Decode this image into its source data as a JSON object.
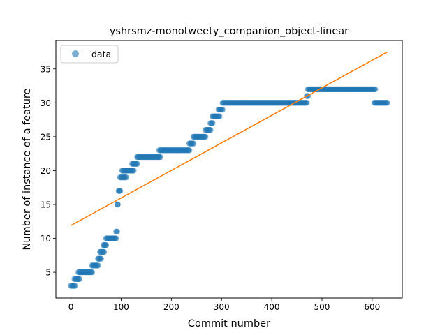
{
  "chart_data": {
    "type": "scatter",
    "title": "yshrsmz-monotweety_companion_object-linear",
    "xlabel": "Commit number",
    "ylabel": "Number of instance of a feature",
    "xlim": [
      -30,
      660
    ],
    "ylim": [
      1.2,
      39.2
    ],
    "xticks": [
      0,
      100,
      200,
      300,
      400,
      500,
      600
    ],
    "yticks": [
      5,
      10,
      15,
      20,
      25,
      30,
      35
    ],
    "legend": {
      "position": "top-left",
      "entries": [
        "data"
      ]
    },
    "grid": false,
    "colors": {
      "scatter": "#1f77b4",
      "fit": "#ff7f0e"
    },
    "scatter_segments": [
      {
        "x0": 0,
        "x1": 8,
        "y": 3
      },
      {
        "x0": 7,
        "x1": 17,
        "y": 4
      },
      {
        "x0": 15,
        "x1": 42,
        "y": 5
      },
      {
        "x0": 42,
        "x1": 54,
        "y": 6
      },
      {
        "x0": 54,
        "x1": 60,
        "y": 7
      },
      {
        "x0": 58,
        "x1": 66,
        "y": 8
      },
      {
        "x0": 65,
        "x1": 70,
        "y": 9
      },
      {
        "x0": 70,
        "x1": 90,
        "y": 10
      },
      {
        "x0": 90,
        "x1": 92,
        "y": 11
      },
      {
        "x0": 93,
        "x1": 93,
        "y": 15
      },
      {
        "x0": 95,
        "x1": 98,
        "y": 17
      },
      {
        "x0": 98,
        "x1": 110,
        "y": 19
      },
      {
        "x0": 102,
        "x1": 125,
        "y": 20
      },
      {
        "x0": 122,
        "x1": 132,
        "y": 21
      },
      {
        "x0": 132,
        "x1": 178,
        "y": 22
      },
      {
        "x0": 176,
        "x1": 236,
        "y": 23
      },
      {
        "x0": 236,
        "x1": 244,
        "y": 24
      },
      {
        "x0": 244,
        "x1": 268,
        "y": 25
      },
      {
        "x0": 268,
        "x1": 278,
        "y": 26
      },
      {
        "x0": 278,
        "x1": 282,
        "y": 27
      },
      {
        "x0": 282,
        "x1": 296,
        "y": 28
      },
      {
        "x0": 294,
        "x1": 302,
        "y": 29
      },
      {
        "x0": 302,
        "x1": 470,
        "y": 30
      },
      {
        "x0": 470,
        "x1": 472,
        "y": 31
      },
      {
        "x0": 472,
        "x1": 606,
        "y": 32
      },
      {
        "x0": 604,
        "x1": 630,
        "y": 30
      }
    ],
    "fit_line": {
      "x": [
        0,
        630
      ],
      "y": [
        11.9,
        37.5
      ]
    }
  }
}
